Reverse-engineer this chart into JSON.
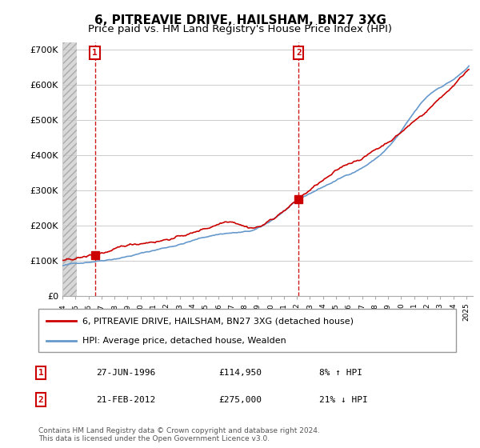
{
  "title": "6, PITREAVIE DRIVE, HAILSHAM, BN27 3XG",
  "subtitle": "Price paid vs. HM Land Registry's House Price Index (HPI)",
  "ylim": [
    0,
    720000
  ],
  "yticks": [
    0,
    100000,
    200000,
    300000,
    400000,
    500000,
    600000,
    700000
  ],
  "ytick_labels": [
    "£0",
    "£100K",
    "£200K",
    "£300K",
    "£400K",
    "£500K",
    "£600K",
    "£700K"
  ],
  "xlim_start": 1994.0,
  "xlim_end": 2025.5,
  "transaction1": {
    "date": 1996.49,
    "price": 114950,
    "label": "1"
  },
  "transaction2": {
    "date": 2012.13,
    "price": 275000,
    "label": "2"
  },
  "legend_house": "6, PITREAVIE DRIVE, HAILSHAM, BN27 3XG (detached house)",
  "legend_hpi": "HPI: Average price, detached house, Wealden",
  "table_row1": [
    "1",
    "27-JUN-1996",
    "£114,950",
    "8% ↑ HPI"
  ],
  "table_row2": [
    "2",
    "21-FEB-2012",
    "£275,000",
    "21% ↓ HPI"
  ],
  "footer": "Contains HM Land Registry data © Crown copyright and database right 2024.\nThis data is licensed under the Open Government Licence v3.0.",
  "line_color_house": "#cc0000",
  "line_color_hpi": "#6699cc",
  "vline_color": "#cc0000",
  "title_fontsize": 11,
  "subtitle_fontsize": 9.5
}
